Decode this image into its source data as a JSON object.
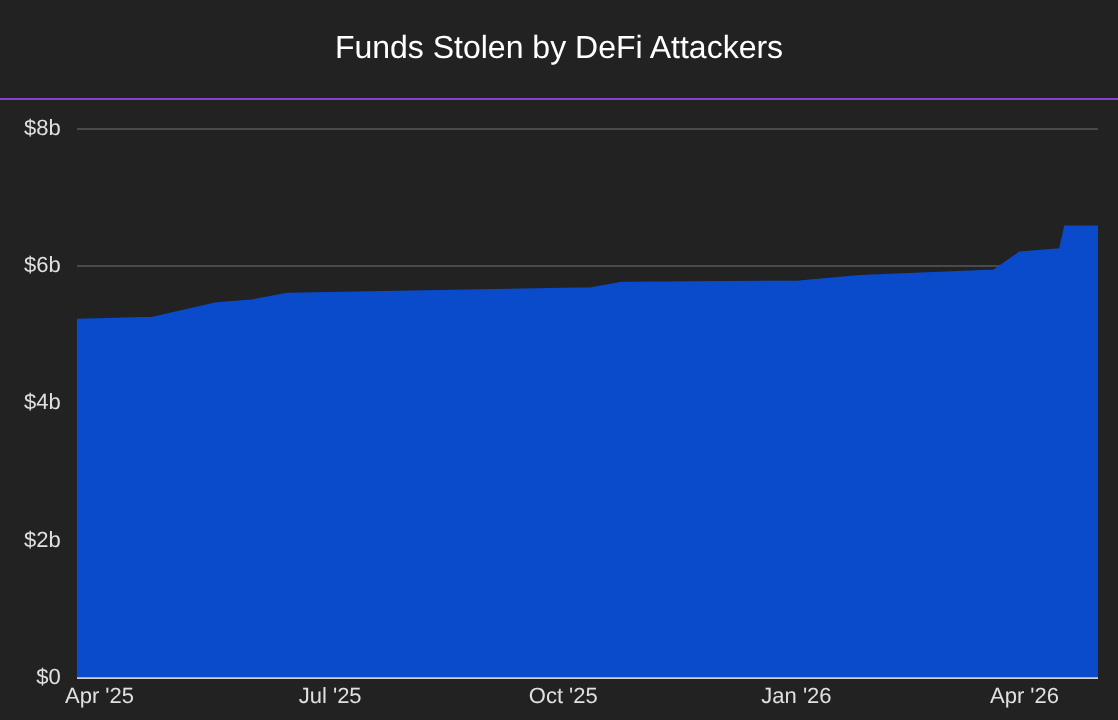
{
  "chart_data": {
    "type": "area",
    "title": "Funds Stolen by DeFi Attackers",
    "x": [
      "2025-03-23",
      "2025-04-22",
      "2025-05-17",
      "2025-05-31",
      "2025-06-14",
      "2025-10-12",
      "2025-10-24",
      "2026-01-02",
      "2026-01-26",
      "2026-03-20",
      "2026-03-30",
      "2026-04-15",
      "2026-04-17",
      "2026-04-30"
    ],
    "series": [
      {
        "color": "#0a4bcb",
        "values": [
          5.22,
          5.25,
          5.46,
          5.5,
          5.6,
          5.68,
          5.76,
          5.78,
          5.86,
          5.94,
          6.2,
          6.25,
          6.58,
          6.58
        ]
      }
    ],
    "xlim": [
      "2025-03-23",
      "2026-04-30"
    ],
    "xticks": [
      {
        "value": "2025-04-01",
        "label": "Apr '25"
      },
      {
        "value": "2025-07-01",
        "label": "Jul '25"
      },
      {
        "value": "2025-10-01",
        "label": "Oct '25"
      },
      {
        "value": "2026-01-01",
        "label": "Jan '26"
      },
      {
        "value": "2026-04-01",
        "label": "Apr '26"
      }
    ],
    "ylim": [
      0,
      8
    ],
    "yticks": [
      {
        "value": 0,
        "label": "$0"
      },
      {
        "value": 2,
        "label": "$2b"
      },
      {
        "value": 4,
        "label": "$4b"
      },
      {
        "value": 6,
        "label": "$6b"
      },
      {
        "value": 8,
        "label": "$8b"
      }
    ],
    "grid": "y",
    "legend": false
  }
}
